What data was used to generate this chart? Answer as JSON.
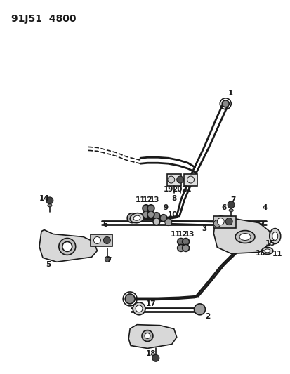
{
  "title": "91J51  4800",
  "bg_color": "#ffffff",
  "line_color": "#1a1a1a",
  "title_fontsize": 10,
  "label_fontsize": 7.5,
  "fig_width": 4.14,
  "fig_height": 5.33,
  "dpi": 100
}
